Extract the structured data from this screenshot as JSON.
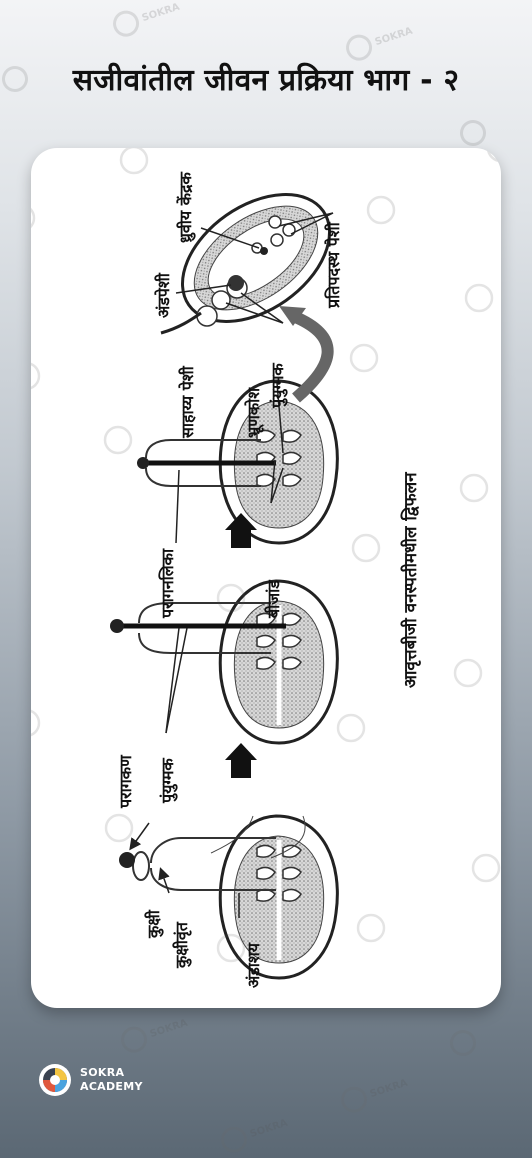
{
  "title": "सजीवांतील जीवन प्रक्रिया भाग - २",
  "brand": {
    "line1": "SOKRA",
    "line2": "ACADEMY"
  },
  "diagram": {
    "caption": "आवृत्तबीजी वनस्पतीमधील द्विफलन",
    "labels": {
      "stigma": "कुक्षी",
      "style": "कुक्षीवृंत",
      "ovary": "अंडाशय",
      "pollen_grain": "परागकण",
      "male_gamete": "पुंयुग्मक",
      "pollen_tube": "परागनलिका",
      "ovule": "बीजांड",
      "embryo_sac": "भ्रूणकोश",
      "male_gamete_2": "पुंयुग्मक",
      "synergids": "साहाय्य पेशी",
      "egg_cell": "अंडपेशी",
      "polar_nuclei": "ध्रुवीय केंद्रक",
      "antipodal_cells": "प्रतिपदस्थ पेशी"
    }
  },
  "colors": {
    "accent": "#ffffff",
    "text": "#111111"
  }
}
